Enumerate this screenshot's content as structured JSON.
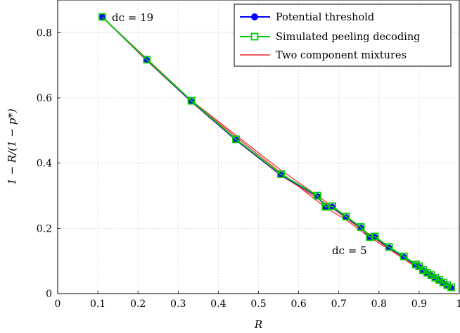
{
  "chart_data": {
    "type": "line",
    "xlabel": "R",
    "ylabel": "1 − R/(1 − p*)",
    "xlim": [
      0,
      1
    ],
    "ylim": [
      0,
      0.9
    ],
    "xticks": [
      "0",
      "0.1",
      "0.2",
      "0.3",
      "0.4",
      "0.5",
      "0.6",
      "0.7",
      "0.8",
      "0.9",
      "1"
    ],
    "yticks": [
      "0",
      "0.2",
      "0.4",
      "0.6",
      "0.8"
    ],
    "grid": true,
    "legend_position": "top-right",
    "annotations": [
      {
        "text": "d_c = 19",
        "display": "dc = 19",
        "x": 0.11,
        "y": 0.848
      },
      {
        "text": "d_c = 5",
        "display": "dc = 5",
        "x": 0.8,
        "y": 0.2
      }
    ],
    "series": [
      {
        "name": "Potential threshold",
        "color": "#0000ff",
        "marker": "circle",
        "x": [
          0.111,
          0.222,
          0.333,
          0.444,
          0.556,
          0.647,
          0.667,
          0.684,
          0.718,
          0.755,
          0.777,
          0.79,
          0.825,
          0.862,
          0.892,
          0.9,
          0.91,
          0.92,
          0.93,
          0.94,
          0.95,
          0.96,
          0.97,
          0.98
        ],
        "y": [
          0.848,
          0.716,
          0.589,
          0.471,
          0.364,
          0.298,
          0.264,
          0.266,
          0.234,
          0.202,
          0.171,
          0.173,
          0.141,
          0.112,
          0.087,
          0.082,
          0.07,
          0.062,
          0.055,
          0.047,
          0.04,
          0.032,
          0.024,
          0.017
        ]
      },
      {
        "name": "Simulated peeling decoding",
        "color": "#00cc00",
        "marker": "square",
        "x": [
          0.111,
          0.222,
          0.333,
          0.444,
          0.556,
          0.647,
          0.667,
          0.684,
          0.718,
          0.755,
          0.777,
          0.79,
          0.825,
          0.862,
          0.892,
          0.9,
          0.91,
          0.92,
          0.93,
          0.94,
          0.95,
          0.96,
          0.97,
          0.98
        ],
        "y": [
          0.848,
          0.717,
          0.591,
          0.473,
          0.366,
          0.3,
          0.266,
          0.268,
          0.236,
          0.204,
          0.173,
          0.175,
          0.143,
          0.114,
          0.089,
          0.084,
          0.072,
          0.064,
          0.057,
          0.049,
          0.042,
          0.034,
          0.026,
          0.019
        ]
      },
      {
        "name": "Two component mixtures",
        "color": "#ee4444",
        "marker": "none",
        "segments": [
          {
            "x": [
              0.111,
              0.333,
              0.556,
              0.647,
              0.755,
              0.825,
              0.892,
              0.94,
              0.98
            ],
            "y": [
              0.848,
              0.592,
              0.378,
              0.3,
              0.2,
              0.138,
              0.085,
              0.046,
              0.016
            ]
          },
          {
            "x": [
              0.111,
              0.222,
              0.333,
              0.444,
              0.556,
              0.647,
              0.684,
              0.755,
              0.79,
              0.862,
              0.9,
              0.95,
              0.98
            ],
            "y": [
              0.848,
              0.714,
              0.588,
              0.47,
              0.362,
              0.292,
              0.262,
              0.198,
              0.168,
              0.108,
              0.078,
              0.036,
              0.014
            ]
          },
          {
            "x": [
              0.111,
              0.333,
              0.444,
              0.556,
              0.667,
              0.718,
              0.777,
              0.825,
              0.862,
              0.91,
              0.96,
              0.98
            ],
            "y": [
              0.848,
              0.59,
              0.48,
              0.37,
              0.264,
              0.226,
              0.172,
              0.136,
              0.106,
              0.066,
              0.028,
              0.015
            ]
          }
        ]
      }
    ]
  }
}
